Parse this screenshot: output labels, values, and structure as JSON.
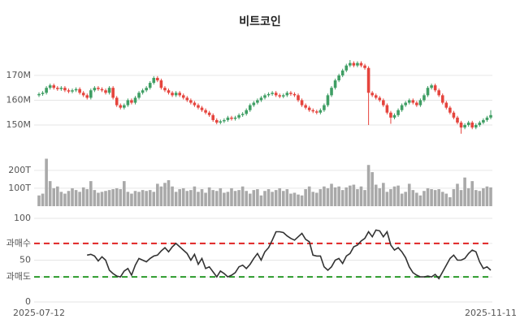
{
  "chart_data": [
    {
      "type": "candlestick",
      "title": "비트코인",
      "categories": [
        "2025-07-12",
        null,
        null,
        null,
        null,
        null,
        null,
        null,
        null,
        null,
        null,
        null,
        null,
        null,
        null,
        null,
        null,
        null,
        null,
        null,
        null,
        null,
        null,
        null,
        null,
        null,
        null,
        null,
        null,
        null,
        null,
        null,
        null,
        null,
        null,
        null,
        null,
        null,
        null,
        null,
        null,
        null,
        null,
        null,
        null,
        null,
        null,
        null,
        null,
        null,
        null,
        null,
        null,
        null,
        null,
        null,
        null,
        null,
        null,
        null,
        null,
        null,
        null,
        null,
        null,
        null,
        null,
        null,
        null,
        null,
        null,
        null,
        null,
        null,
        null,
        null,
        null,
        null,
        null,
        null,
        null,
        null,
        null,
        null,
        null,
        null,
        null,
        null,
        null,
        null,
        null,
        null,
        null,
        null,
        null,
        null,
        null,
        null,
        null,
        null,
        null,
        null,
        null,
        null,
        null,
        null,
        null,
        null,
        null,
        null,
        null,
        null,
        null,
        null,
        null,
        null,
        null,
        null,
        null,
        null,
        null,
        null,
        "2025-11-11"
      ],
      "open": [
        162,
        162.5,
        163,
        165,
        166,
        165,
        164.5,
        165,
        164,
        163.5,
        164,
        164.5,
        163,
        162,
        161,
        164,
        165,
        164.5,
        164,
        163,
        165,
        161,
        158,
        157,
        158,
        160,
        159,
        161,
        163,
        164,
        165,
        167,
        169,
        168,
        165,
        164,
        163,
        162,
        163,
        162,
        161,
        160,
        159,
        158,
        157,
        156,
        155,
        154,
        152,
        151,
        151.5,
        152,
        153,
        152.5,
        153,
        154,
        154.5,
        156,
        158,
        159,
        160,
        161,
        162,
        162.5,
        163,
        162,
        161.5,
        162,
        163,
        162.5,
        162,
        160,
        158,
        157,
        156,
        155.5,
        155,
        156,
        158,
        162,
        165,
        168,
        170,
        172,
        174,
        175,
        174,
        175,
        174,
        173,
        163,
        162,
        161,
        160,
        158,
        155,
        153,
        154,
        156,
        158,
        159,
        160,
        159,
        158,
        160,
        162,
        165,
        166,
        164,
        162,
        159,
        157,
        155,
        153,
        151,
        149,
        150,
        151,
        149,
        150,
        151,
        152,
        153
      ],
      "high": [
        163.2,
        163.7,
        165.7,
        166.7,
        166.7,
        165.7,
        165.7,
        165.7,
        164.7,
        164.7,
        165.2,
        165.2,
        163.7,
        162.7,
        164.7,
        165.7,
        165.7,
        165.2,
        164.7,
        165.7,
        165.7,
        161.7,
        158.7,
        158.7,
        160.7,
        160.7,
        161.7,
        163.7,
        164.7,
        165.7,
        167.7,
        169.7,
        169.7,
        168.7,
        165.7,
        164.7,
        163.7,
        163.7,
        163.7,
        162.7,
        161.7,
        160.7,
        159.7,
        158.7,
        157.7,
        156.7,
        155.7,
        154.7,
        152.7,
        152.2,
        152.7,
        153.7,
        153.7,
        153.7,
        154.7,
        155.2,
        156.7,
        158.7,
        159.7,
        160.7,
        161.7,
        162.7,
        163.2,
        163.7,
        163.7,
        162.7,
        162.7,
        163.7,
        163.7,
        163.2,
        162.7,
        160.7,
        158.7,
        157.7,
        156.7,
        156.2,
        156.7,
        158.7,
        162.7,
        165.7,
        168.7,
        170.7,
        172.7,
        174.7,
        176.2,
        175.7,
        175.7,
        175.7,
        174.7,
        173.7,
        163.7,
        162.7,
        161.7,
        160.7,
        158.7,
        155.7,
        154.7,
        156.7,
        158.7,
        159.7,
        160.7,
        160.7,
        159.7,
        160.7,
        162.7,
        165.7,
        166.7,
        166.7,
        164.7,
        162.7,
        159.7,
        157.7,
        155.7,
        153.7,
        151.7,
        150.7,
        151.7,
        151.7,
        150.7,
        151.7,
        152.7,
        153.7,
        156
      ],
      "low": [
        161.3,
        161.8,
        162.3,
        164.3,
        164.3,
        163.8,
        163.8,
        163.3,
        162.8,
        162.8,
        163.3,
        162.3,
        161.3,
        160.3,
        160.3,
        163.3,
        163.8,
        163.3,
        162.3,
        162.3,
        160.3,
        157.3,
        156.3,
        156.3,
        157.3,
        158.3,
        158.3,
        160.3,
        162.3,
        163.3,
        164.3,
        166.3,
        167.3,
        164.3,
        163.3,
        162.3,
        161.3,
        161.3,
        161.3,
        160.3,
        159.3,
        158.3,
        157.3,
        156.3,
        155.3,
        154.3,
        153.3,
        151.3,
        150.3,
        150.3,
        150.8,
        151.3,
        151.8,
        151.8,
        152.3,
        153.3,
        153.8,
        155.3,
        157.3,
        158.3,
        159.3,
        160.3,
        161.3,
        161.8,
        161.3,
        160.8,
        160.8,
        161.3,
        161.8,
        161.3,
        159.3,
        157.3,
        156.3,
        155.3,
        154.8,
        154.3,
        154.3,
        155.3,
        157.3,
        161.3,
        164.3,
        167.3,
        169.3,
        171.3,
        173.3,
        173.3,
        173.3,
        173.3,
        172.3,
        150,
        161.3,
        160.3,
        159.3,
        157.3,
        154.3,
        150.5,
        152.3,
        153.3,
        155.3,
        157.3,
        158.3,
        158.3,
        157.3,
        157.3,
        159.3,
        161.3,
        164.3,
        163.3,
        161.3,
        158.3,
        156.3,
        154.3,
        152.3,
        150.3,
        146.5,
        148.3,
        149.3,
        148.3,
        148.3,
        149.3,
        150.3,
        151.3,
        152.3
      ],
      "close": [
        162.5,
        163,
        165,
        166,
        165,
        164.5,
        165,
        164,
        163.5,
        164,
        164.5,
        163,
        162,
        161,
        164,
        165,
        164.5,
        164,
        163,
        165,
        161,
        158,
        157,
        158,
        160,
        159,
        161,
        163,
        164,
        165,
        167,
        169,
        168,
        165,
        164,
        163,
        162,
        163,
        162,
        161,
        160,
        159,
        158,
        157,
        156,
        155,
        154,
        152,
        151,
        151.5,
        152,
        153,
        152.5,
        153,
        154,
        154.5,
        156,
        158,
        159,
        160,
        161,
        162,
        162.5,
        163,
        162,
        161.5,
        162,
        163,
        162.5,
        162,
        160,
        158,
        157,
        156,
        155.5,
        155,
        156,
        158,
        162,
        165,
        168,
        170,
        172,
        174,
        175,
        174,
        175,
        174,
        173,
        163,
        162,
        161,
        160,
        158,
        155,
        153,
        154,
        156,
        158,
        159,
        160,
        159,
        158,
        160,
        162,
        165,
        166,
        164,
        162,
        159,
        157,
        155,
        153,
        151,
        149,
        150,
        151,
        149,
        150,
        151,
        152,
        153,
        154
      ],
      "up_color": "#3f9e64",
      "down_color": "#e5443d",
      "ylim": [
        141.5,
        177.5
      ],
      "yticks": [
        {
          "value": 150,
          "label": "150M"
        },
        {
          "value": 160,
          "label": "160M"
        },
        {
          "value": 170,
          "label": "170M"
        }
      ],
      "grid": true
    },
    {
      "type": "bar",
      "color": "#a9a9a9",
      "values": [
        60,
        70,
        265,
        140,
        100,
        110,
        80,
        70,
        85,
        100,
        90,
        80,
        105,
        95,
        140,
        90,
        75,
        80,
        85,
        90,
        95,
        100,
        95,
        140,
        80,
        70,
        85,
        80,
        90,
        85,
        90,
        80,
        125,
        110,
        130,
        145,
        110,
        80,
        95,
        100,
        85,
        90,
        110,
        80,
        95,
        75,
        105,
        90,
        85,
        100,
        75,
        80,
        100,
        85,
        90,
        110,
        85,
        70,
        90,
        95,
        60,
        85,
        95,
        80,
        90,
        100,
        85,
        95,
        70,
        75,
        65,
        60,
        95,
        110,
        80,
        75,
        95,
        110,
        100,
        125,
        105,
        110,
        90,
        105,
        115,
        120,
        95,
        110,
        90,
        230,
        190,
        120,
        100,
        130,
        80,
        95,
        110,
        115,
        70,
        80,
        125,
        90,
        75,
        60,
        85,
        100,
        95,
        90,
        95,
        80,
        70,
        50,
        95,
        125,
        90,
        160,
        100,
        140,
        90,
        85,
        100,
        110,
        105
      ],
      "ylim": [
        0,
        290
      ],
      "yticks": [
        {
          "value": 100,
          "label": "100T"
        },
        {
          "value": 200,
          "label": "200T"
        }
      ],
      "grid": true
    },
    {
      "type": "line",
      "color": "#333333",
      "values": [
        null,
        null,
        null,
        null,
        null,
        null,
        null,
        null,
        null,
        null,
        null,
        null,
        null,
        56,
        57,
        55,
        49,
        54,
        50,
        38,
        34,
        31,
        30,
        37,
        40,
        32,
        44,
        52,
        50,
        48,
        52,
        55,
        56,
        61,
        65,
        60,
        66,
        70,
        66,
        62,
        58,
        50,
        57,
        45,
        52,
        40,
        42,
        36,
        30,
        37,
        34,
        30,
        32,
        35,
        42,
        44,
        40,
        45,
        52,
        58,
        50,
        60,
        65,
        74,
        84,
        84,
        83,
        79,
        76,
        74,
        78,
        82,
        75,
        72,
        56,
        55,
        55,
        42,
        38,
        42,
        50,
        52,
        46,
        55,
        58,
        66,
        68,
        73,
        76,
        84,
        78,
        86,
        85,
        78,
        84,
        68,
        62,
        65,
        60,
        53,
        42,
        35,
        32,
        30,
        30,
        31,
        30,
        33,
        28,
        36,
        44,
        52,
        56,
        50,
        50,
        52,
        58,
        62,
        60,
        48,
        40,
        42,
        38
      ],
      "ylim": [
        0,
        100
      ],
      "yticks": [
        0,
        {
          "value": 30,
          "label": "과매도"
        },
        50,
        {
          "value": 70,
          "label": "과매수"
        },
        100
      ],
      "hlines": [
        {
          "value": 70,
          "color": "#e02424"
        },
        {
          "value": 30,
          "color": "#2a9a2a"
        }
      ],
      "grid": true
    }
  ]
}
